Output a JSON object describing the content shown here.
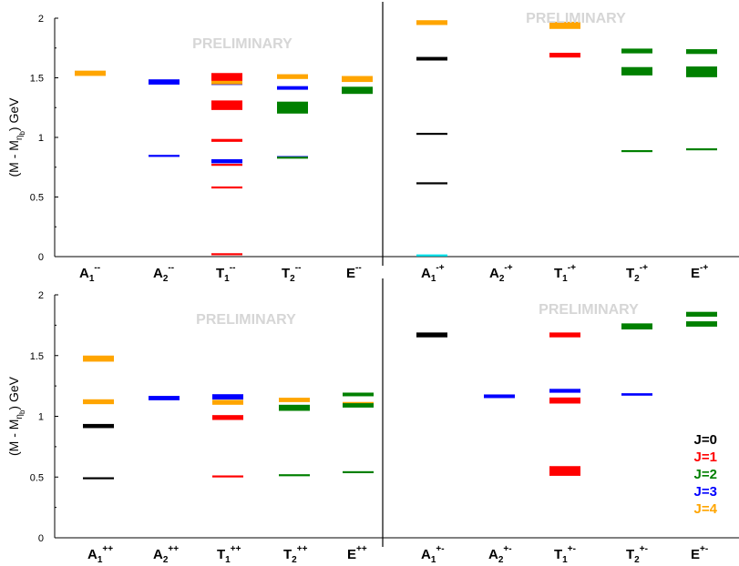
{
  "chart_data": {
    "type": "spectrum",
    "ylabel_main": "(M - M",
    "ylabel_sub": "η",
    "ylabel_subsub": "b",
    "ylabel_tail": ") GeV",
    "y_ticks": [
      "0",
      "0.5",
      "1",
      "1.5",
      "2"
    ],
    "ylim": [
      0,
      2
    ],
    "watermark": "PRELIMINARY",
    "colors": {
      "J0": "#000000",
      "J1": "#ff0000",
      "J2": "#008000",
      "J3": "#0000ff",
      "J4": "#ffa500"
    },
    "legend": [
      {
        "label": "J=0",
        "color": "#000000"
      },
      {
        "label": "J=1",
        "color": "#ff0000"
      },
      {
        "label": "J=2",
        "color": "#008000"
      },
      {
        "label": "J=3",
        "color": "#0000ff"
      },
      {
        "label": "J=4",
        "color": "#ffa500"
      }
    ],
    "panels": [
      {
        "name": "PC=--",
        "irreps": [
          {
            "base": "A",
            "sub": "1",
            "sup": "--",
            "levels": [
              {
                "mass": 1.538,
                "err": 0.022,
                "color": "#ffa500"
              }
            ]
          },
          {
            "base": "A",
            "sub": "2",
            "sup": "--",
            "levels": [
              {
                "mass": 1.465,
                "err": 0.022,
                "color": "#0000ff"
              },
              {
                "mass": 0.845,
                "err": 0.004,
                "color": "#0000ff"
              }
            ]
          },
          {
            "base": "T",
            "sub": "1",
            "sup": "--",
            "levels": [
              {
                "mass": 1.5,
                "err": 0.04,
                "color": "#ff0000"
              },
              {
                "mass": 1.455,
                "err": 0.015,
                "color": "#0000ff"
              },
              {
                "mass": 1.46,
                "err": 0.015,
                "color": "#ffa500"
              },
              {
                "mass": 1.27,
                "err": 0.04,
                "color": "#ff0000"
              },
              {
                "mass": 0.975,
                "err": 0.012,
                "color": "#ff0000"
              },
              {
                "mass": 0.8,
                "err": 0.017,
                "color": "#0000ff"
              },
              {
                "mass": 0.77,
                "err": 0.007,
                "color": "#ff0000"
              },
              {
                "mass": 0.58,
                "err": 0.006,
                "color": "#ff0000"
              },
              {
                "mass": 0.02,
                "err": 0.004,
                "color": "#ff0000"
              }
            ]
          },
          {
            "base": "T",
            "sub": "2",
            "sup": "--",
            "levels": [
              {
                "mass": 1.51,
                "err": 0.02,
                "color": "#ffa500"
              },
              {
                "mass": 1.415,
                "err": 0.015,
                "color": "#0000ff"
              },
              {
                "mass": 1.25,
                "err": 0.05,
                "color": "#008000"
              },
              {
                "mass": 0.835,
                "err": 0.008,
                "color": "#0000ff"
              },
              {
                "mass": 0.83,
                "err": 0.005,
                "color": "#008000"
              }
            ]
          },
          {
            "base": "E",
            "sub": "",
            "sup": "--",
            "levels": [
              {
                "mass": 1.49,
                "err": 0.025,
                "color": "#ffa500"
              },
              {
                "mass": 1.395,
                "err": 0.03,
                "color": "#008000"
              }
            ]
          }
        ]
      },
      {
        "name": "PC=-+",
        "irreps": [
          {
            "base": "A",
            "sub": "1",
            "sup": "-+",
            "levels": [
              {
                "mass": 1.963,
                "err": 0.02,
                "color": "#ffa500"
              },
              {
                "mass": 1.66,
                "err": 0.015,
                "color": "#000000"
              },
              {
                "mass": 1.03,
                "err": 0.006,
                "color": "#000000"
              },
              {
                "mass": 0.615,
                "err": 0.005,
                "color": "#000000"
              },
              {
                "mass": 0.01,
                "err": 0.008,
                "color": "#00e5ee"
              }
            ]
          },
          {
            "base": "A",
            "sub": "2",
            "sup": "-+",
            "levels": []
          },
          {
            "base": "T",
            "sub": "1",
            "sup": "-+",
            "levels": [
              {
                "mass": 1.94,
                "err": 0.03,
                "color": "#ffa500"
              },
              {
                "mass": 1.69,
                "err": 0.02,
                "color": "#ff0000"
              }
            ]
          },
          {
            "base": "T",
            "sub": "2",
            "sup": "-+",
            "levels": [
              {
                "mass": 1.725,
                "err": 0.02,
                "color": "#008000"
              },
              {
                "mass": 1.555,
                "err": 0.035,
                "color": "#008000"
              },
              {
                "mass": 0.885,
                "err": 0.006,
                "color": "#008000"
              }
            ]
          },
          {
            "base": "E",
            "sub": "",
            "sup": "-+",
            "levels": [
              {
                "mass": 1.72,
                "err": 0.02,
                "color": "#008000"
              },
              {
                "mass": 1.55,
                "err": 0.045,
                "color": "#008000"
              },
              {
                "mass": 0.9,
                "err": 0.008,
                "color": "#008000"
              }
            ]
          }
        ]
      },
      {
        "name": "PC=++",
        "irreps": [
          {
            "base": "A",
            "sub": "1",
            "sup": "++",
            "levels": [
              {
                "mass": 1.475,
                "err": 0.025,
                "color": "#ffa500"
              },
              {
                "mass": 1.12,
                "err": 0.02,
                "color": "#ffa500"
              },
              {
                "mass": 0.92,
                "err": 0.017,
                "color": "#000000"
              },
              {
                "mass": 0.49,
                "err": 0.004,
                "color": "#000000"
              }
            ]
          },
          {
            "base": "A",
            "sub": "2",
            "sup": "++",
            "levels": [
              {
                "mass": 1.15,
                "err": 0.018,
                "color": "#0000ff"
              }
            ]
          },
          {
            "base": "T",
            "sub": "1",
            "sup": "++",
            "levels": [
              {
                "mass": 1.16,
                "err": 0.022,
                "color": "#0000ff"
              },
              {
                "mass": 1.115,
                "err": 0.02,
                "color": "#ffa500"
              },
              {
                "mass": 0.99,
                "err": 0.02,
                "color": "#ff0000"
              },
              {
                "mass": 0.505,
                "err": 0.004,
                "color": "#ff0000"
              }
            ]
          },
          {
            "base": "T",
            "sub": "2",
            "sup": "++",
            "levels": [
              {
                "mass": 1.135,
                "err": 0.018,
                "color": "#ffa500"
              },
              {
                "mass": 1.07,
                "err": 0.025,
                "color": "#008000"
              },
              {
                "mass": 0.515,
                "err": 0.005,
                "color": "#008000"
              }
            ]
          },
          {
            "base": "E",
            "sub": "",
            "sup": "++",
            "levels": [
              {
                "mass": 1.18,
                "err": 0.015,
                "color": "#008000"
              },
              {
                "mass": 1.1,
                "err": 0.018,
                "color": "#ffa500"
              },
              {
                "mass": 1.09,
                "err": 0.018,
                "color": "#008000"
              },
              {
                "mass": 0.54,
                "err": 0.005,
                "color": "#008000"
              }
            ]
          }
        ]
      },
      {
        "name": "PC=+-",
        "irreps": [
          {
            "base": "A",
            "sub": "1",
            "sup": "+-",
            "levels": [
              {
                "mass": 1.67,
                "err": 0.02,
                "color": "#000000"
              }
            ]
          },
          {
            "base": "A",
            "sub": "2",
            "sup": "+-",
            "levels": [
              {
                "mass": 1.165,
                "err": 0.015,
                "color": "#0000ff"
              }
            ]
          },
          {
            "base": "T",
            "sub": "1",
            "sup": "+-",
            "levels": [
              {
                "mass": 1.67,
                "err": 0.02,
                "color": "#ff0000"
              },
              {
                "mass": 1.21,
                "err": 0.016,
                "color": "#0000ff"
              },
              {
                "mass": 1.13,
                "err": 0.025,
                "color": "#ff0000"
              },
              {
                "mass": 0.55,
                "err": 0.04,
                "color": "#ff0000"
              }
            ]
          },
          {
            "base": "T",
            "sub": "2",
            "sup": "+-",
            "levels": [
              {
                "mass": 1.74,
                "err": 0.025,
                "color": "#008000"
              },
              {
                "mass": 1.18,
                "err": 0.01,
                "color": "#0000ff"
              }
            ]
          },
          {
            "base": "E",
            "sub": "",
            "sup": "+-",
            "levels": [
              {
                "mass": 1.84,
                "err": 0.02,
                "color": "#008000"
              },
              {
                "mass": 1.76,
                "err": 0.022,
                "color": "#008000"
              }
            ]
          }
        ]
      }
    ]
  }
}
